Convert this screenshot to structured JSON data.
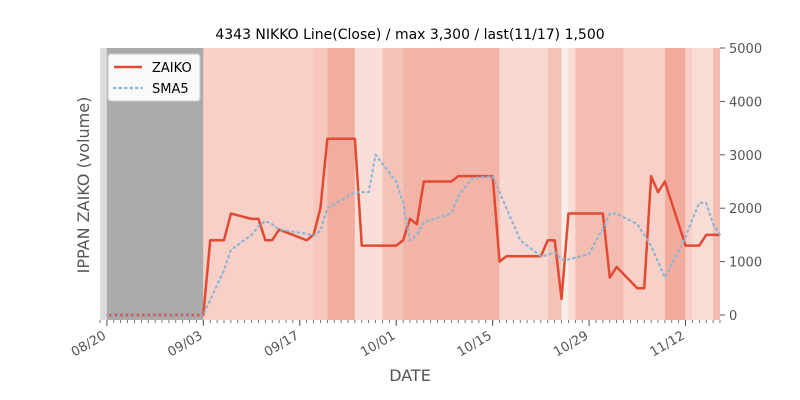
{
  "chart_data": {
    "type": "line",
    "title": "4343 NIKKO Line(Close) / max 3,300 / last(11/17) 1,500",
    "xlabel": "DATE",
    "ylabel": "IPPAN ZAIKO (volume)",
    "ylim": [
      0,
      5000
    ],
    "y_ticks": [
      "0",
      "1000",
      "2000",
      "3000",
      "4000",
      "5000"
    ],
    "y_tick_values": [
      0,
      1000,
      2000,
      3000,
      4000,
      5000
    ],
    "x_tick_labels": [
      "08/20",
      "09/03",
      "09/17",
      "10/01",
      "10/15",
      "10/29",
      "11/12"
    ],
    "x_tick_dates": [
      "2018-08-20",
      "2018-09-03",
      "2018-09-17",
      "2018-10-01",
      "2018-10-15",
      "2018-10-29",
      "2018-11-12"
    ],
    "x_range": [
      "2018-08-19",
      "2018-11-17"
    ],
    "grid": false,
    "legend_position": "top-left",
    "background_color": "#e5e5e5",
    "series": [
      {
        "name": "ZAIKO",
        "color": "#e24a33",
        "style": "solid",
        "x": [
          "2018-08-20",
          "2018-09-03",
          "2018-09-04",
          "2018-09-05",
          "2018-09-06",
          "2018-09-07",
          "2018-09-10",
          "2018-09-11",
          "2018-09-12",
          "2018-09-13",
          "2018-09-14",
          "2018-09-18",
          "2018-09-19",
          "2018-09-20",
          "2018-09-21",
          "2018-09-25",
          "2018-09-26",
          "2018-09-27",
          "2018-09-28",
          "2018-10-01",
          "2018-10-02",
          "2018-10-03",
          "2018-10-04",
          "2018-10-05",
          "2018-10-09",
          "2018-10-10",
          "2018-10-11",
          "2018-10-12",
          "2018-10-15",
          "2018-10-16",
          "2018-10-17",
          "2018-10-18",
          "2018-10-19",
          "2018-10-22",
          "2018-10-23",
          "2018-10-24",
          "2018-10-25",
          "2018-10-26",
          "2018-10-29",
          "2018-10-30",
          "2018-10-31",
          "2018-11-01",
          "2018-11-02",
          "2018-11-05",
          "2018-11-06",
          "2018-11-07",
          "2018-11-08",
          "2018-11-09",
          "2018-11-12",
          "2018-11-13",
          "2018-11-14",
          "2018-11-15",
          "2018-11-16",
          "2018-11-17"
        ],
        "values": [
          0,
          0,
          1400,
          1400,
          1400,
          1900,
          1800,
          1800,
          1400,
          1400,
          1600,
          1400,
          1500,
          2000,
          3300,
          3300,
          1300,
          1300,
          1300,
          1300,
          1400,
          1800,
          1700,
          2500,
          2500,
          2600,
          2600,
          2600,
          2600,
          1000,
          1100,
          1100,
          1100,
          1100,
          1400,
          1400,
          300,
          1900,
          1900,
          1900,
          1900,
          700,
          900,
          500,
          500,
          2600,
          2300,
          2500,
          1300,
          1300,
          1300,
          1500,
          1500,
          1500
        ]
      },
      {
        "name": "SMA5",
        "color": "#8eb4d4",
        "style": "dotted",
        "x": [
          "2018-08-20",
          "2018-09-03",
          "2018-09-04",
          "2018-09-05",
          "2018-09-06",
          "2018-09-07",
          "2018-09-10",
          "2018-09-11",
          "2018-09-12",
          "2018-09-13",
          "2018-09-14",
          "2018-09-18",
          "2018-09-19",
          "2018-09-20",
          "2018-09-21",
          "2018-09-25",
          "2018-09-26",
          "2018-09-27",
          "2018-09-28",
          "2018-10-01",
          "2018-10-02",
          "2018-10-03",
          "2018-10-04",
          "2018-10-05",
          "2018-10-09",
          "2018-10-10",
          "2018-10-11",
          "2018-10-12",
          "2018-10-15",
          "2018-10-16",
          "2018-10-17",
          "2018-10-18",
          "2018-10-19",
          "2018-10-22",
          "2018-10-23",
          "2018-10-24",
          "2018-10-25",
          "2018-10-26",
          "2018-10-29",
          "2018-10-30",
          "2018-10-31",
          "2018-11-01",
          "2018-11-02",
          "2018-11-05",
          "2018-11-06",
          "2018-11-07",
          "2018-11-08",
          "2018-11-09",
          "2018-11-12",
          "2018-11-13",
          "2018-11-14",
          "2018-11-15",
          "2018-11-16",
          "2018-11-17"
        ],
        "values": [
          0,
          0,
          280,
          560,
          840,
          1220,
          1500,
          1660,
          1760,
          1700,
          1600,
          1520,
          1480,
          1580,
          2000,
          2300,
          2300,
          2300,
          3000,
          2500,
          2100,
          1400,
          1500,
          1740,
          1900,
          2220,
          2400,
          2560,
          2600,
          2300,
          2000,
          1700,
          1400,
          1100,
          1120,
          1180,
          1040,
          1040,
          1140,
          1400,
          1600,
          1900,
          1900,
          1700,
          1500,
          1300,
          1000,
          700,
          1460,
          1800,
          2100,
          2100,
          1700,
          1500
        ]
      }
    ],
    "shaded_bands": [
      {
        "from": "2018-08-19",
        "to": "2018-08-20",
        "color": "#dcdcdc"
      },
      {
        "from": "2018-08-20",
        "to": "2018-09-03",
        "color": "#ababab"
      },
      {
        "from": "2018-09-03",
        "to": "2018-09-19",
        "color": "#f8d0c7"
      },
      {
        "from": "2018-09-19",
        "to": "2018-09-21",
        "color": "#f7c7bd"
      },
      {
        "from": "2018-09-21",
        "to": "2018-09-25",
        "color": "#f3ad9f"
      },
      {
        "from": "2018-09-25",
        "to": "2018-09-29",
        "color": "#f9dfd8"
      },
      {
        "from": "2018-09-29",
        "to": "2018-10-02",
        "color": "#f5c2b7"
      },
      {
        "from": "2018-10-02",
        "to": "2018-10-16",
        "color": "#f2b4a6"
      },
      {
        "from": "2018-10-16",
        "to": "2018-10-23",
        "color": "#f8d8d0"
      },
      {
        "from": "2018-10-23",
        "to": "2018-10-25",
        "color": "#f5c2b7"
      },
      {
        "from": "2018-10-25",
        "to": "2018-10-26",
        "color": "#f6eee7"
      },
      {
        "from": "2018-10-26",
        "to": "2018-10-27",
        "color": "#f9dcd4"
      },
      {
        "from": "2018-10-27",
        "to": "2018-11-03",
        "color": "#f4bdb1"
      },
      {
        "from": "2018-11-03",
        "to": "2018-11-09",
        "color": "#f8d0c7"
      },
      {
        "from": "2018-11-09",
        "to": "2018-11-12",
        "color": "#f2ab9d"
      },
      {
        "from": "2018-11-12",
        "to": "2018-11-13",
        "color": "#f8d0c7"
      },
      {
        "from": "2018-11-13",
        "to": "2018-11-16",
        "color": "#f9dcd4"
      },
      {
        "from": "2018-11-16",
        "to": "2018-11-17",
        "color": "#f4bdb1"
      },
      {
        "from": "2018-11-17",
        "to": "2018-11-18",
        "color": "#eeeeee"
      }
    ]
  }
}
